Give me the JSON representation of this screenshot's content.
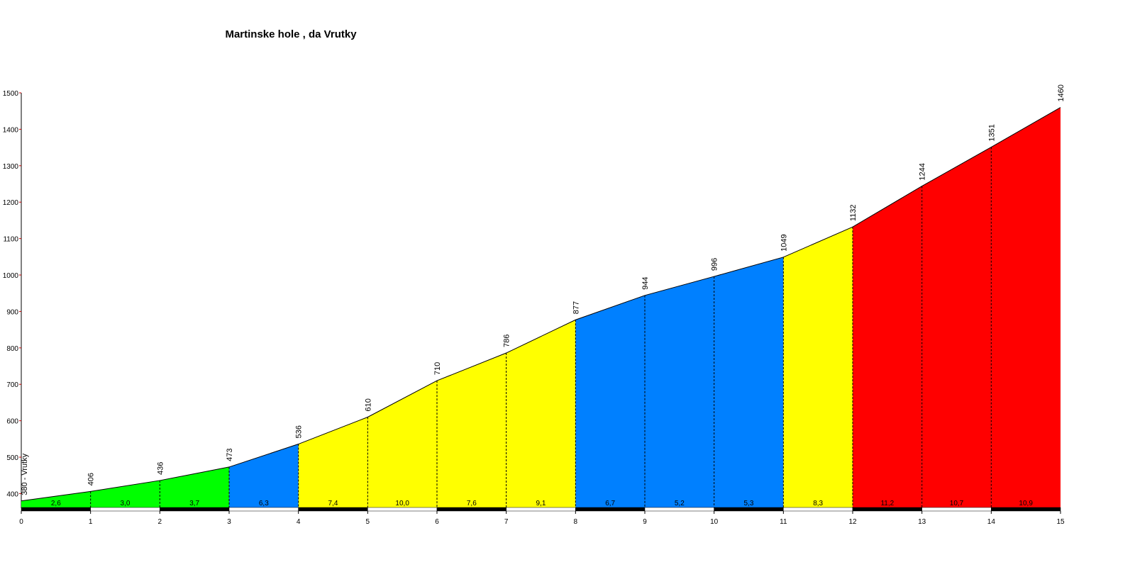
{
  "chart_data": {
    "type": "elevation-profile",
    "title": "Martinske hole , da Vrutky",
    "x": [
      0,
      1,
      2,
      3,
      4,
      5,
      6,
      7,
      8,
      9,
      10,
      11,
      12,
      13,
      14,
      15
    ],
    "values": [
      380,
      406,
      436,
      473,
      536,
      610,
      710,
      786,
      877,
      944,
      996,
      1049,
      1132,
      1244,
      1351,
      1460
    ],
    "value_labels": [
      "380 - Vrutky",
      "406",
      "436",
      "473",
      "536",
      "610",
      "710",
      "786",
      "877",
      "944",
      "996",
      "1049",
      "1132",
      "1244",
      "1351",
      "1460"
    ],
    "gradients": [
      2.6,
      3.0,
      3.7,
      6.3,
      7.4,
      10.0,
      7.6,
      9.1,
      6.7,
      5.2,
      5.3,
      8.3,
      11.2,
      10.7,
      10.9
    ],
    "gradient_labels": [
      "2,6",
      "3,0",
      "3,7",
      "6,3",
      "7,4",
      "10,0",
      "7,6",
      "9,1",
      "6,7",
      "5,2",
      "5,3",
      "8,3",
      "11,2",
      "10,7",
      "10,9"
    ],
    "segment_colors": [
      "#00ff00",
      "#00ff00",
      "#00ff00",
      "#0080ff",
      "#ffff00",
      "#ffff00",
      "#ffff00",
      "#ffff00",
      "#0080ff",
      "#0080ff",
      "#0080ff",
      "#ffff00",
      "#ff0000",
      "#ff0000",
      "#ff0000"
    ],
    "xlim": [
      0,
      15
    ],
    "xticks": [
      0,
      1,
      2,
      3,
      4,
      5,
      6,
      7,
      8,
      9,
      10,
      11,
      12,
      13,
      14,
      15
    ],
    "ylim": [
      360,
      1500
    ],
    "yticks": [
      400,
      500,
      600,
      700,
      800,
      900,
      1000,
      1100,
      1200,
      1300,
      1400,
      1500
    ]
  }
}
